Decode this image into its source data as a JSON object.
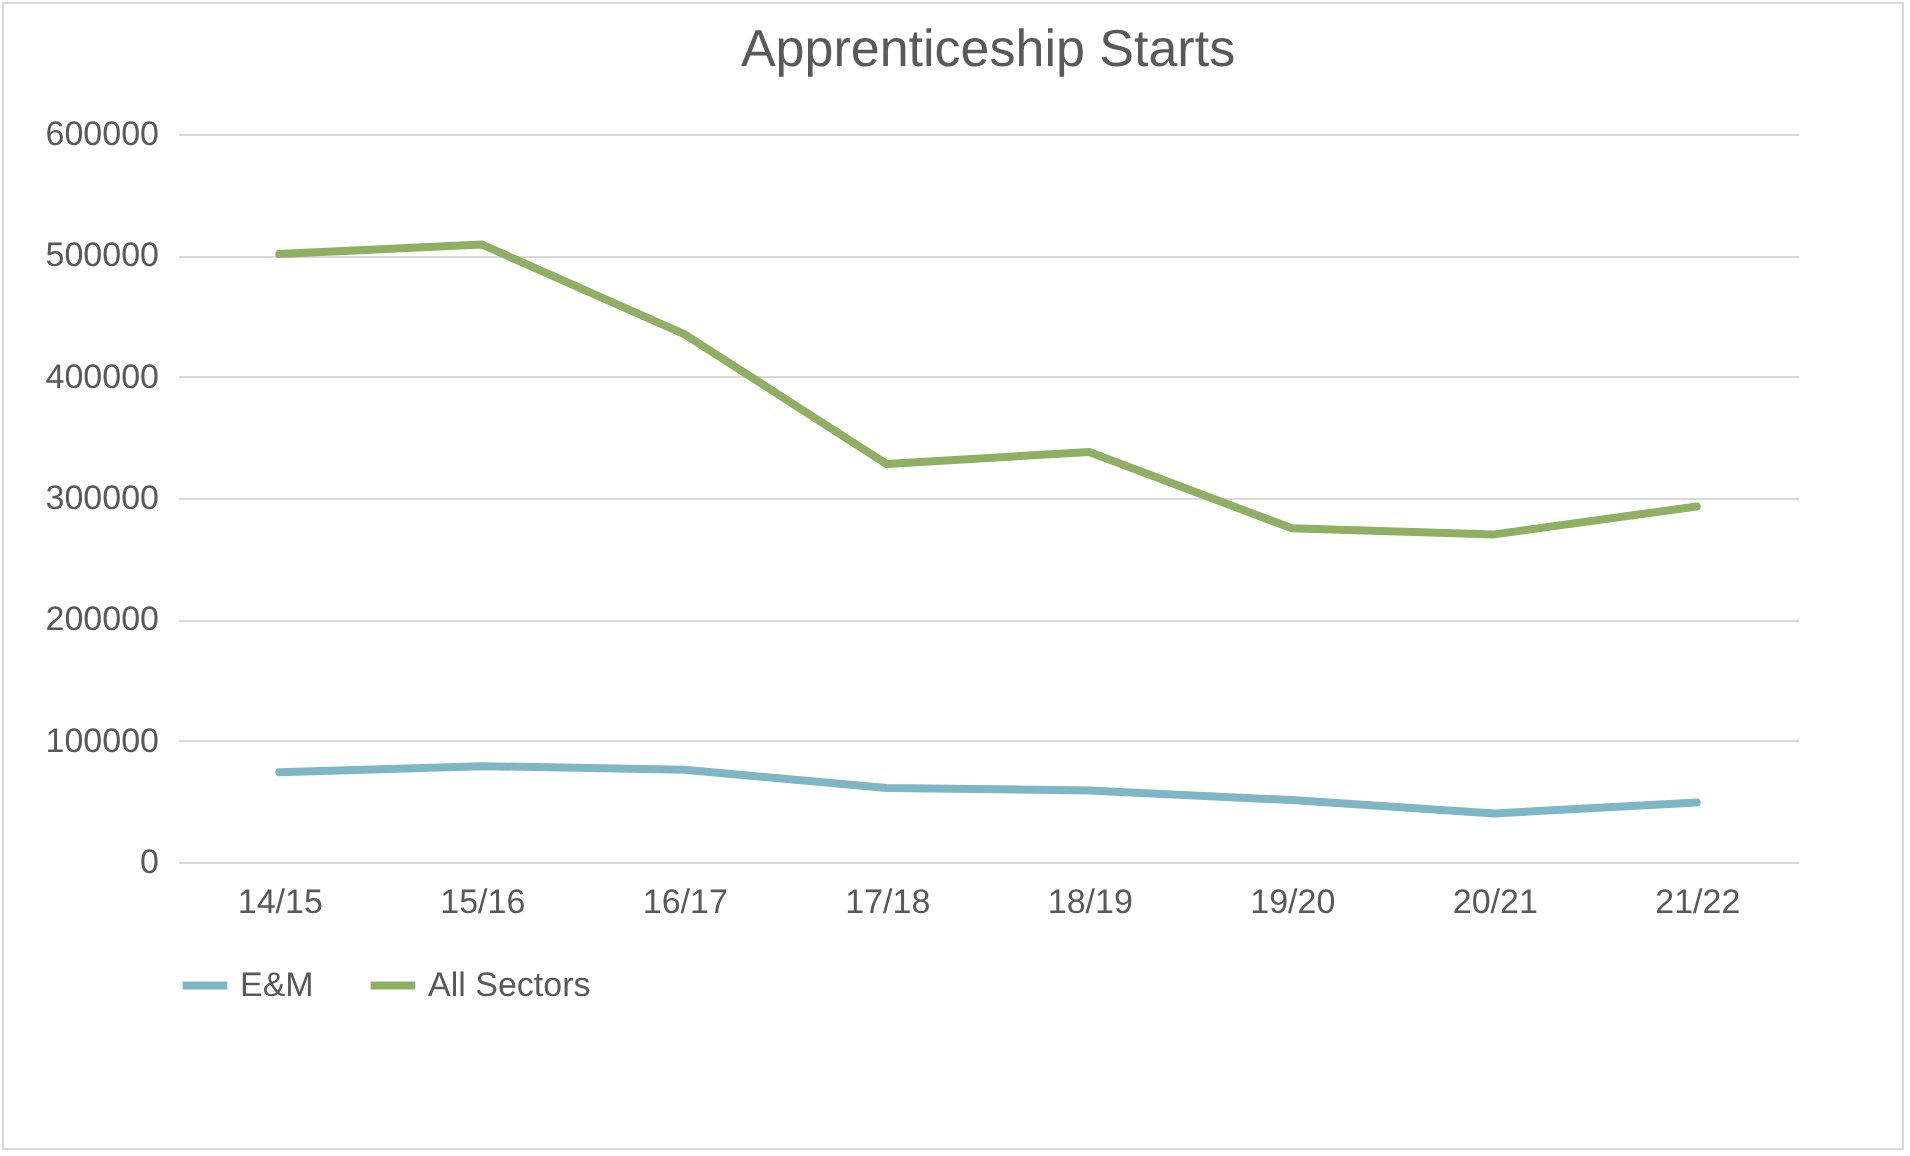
{
  "chart_data": {
    "type": "line",
    "title": "Apprenticeship Starts",
    "categories": [
      "14/15",
      "15/16",
      "16/17",
      "17/18",
      "18/19",
      "19/20",
      "20/21",
      "21/22"
    ],
    "series": [
      {
        "name": "E&M",
        "color": "#7fb6c6",
        "values": [
          74000,
          79000,
          76000,
          61000,
          59000,
          51000,
          40000,
          49000
        ]
      },
      {
        "name": "All Sectors",
        "color": "#8fb063",
        "values": [
          501000,
          509000,
          435000,
          328000,
          338000,
          275000,
          270000,
          293000
        ]
      }
    ],
    "ylim": [
      0,
      600000
    ],
    "yticks": [
      0,
      100000,
      200000,
      300000,
      400000,
      500000,
      600000
    ],
    "grid": "y",
    "legend": "bottom",
    "marker": "none",
    "line_style": "solid"
  }
}
